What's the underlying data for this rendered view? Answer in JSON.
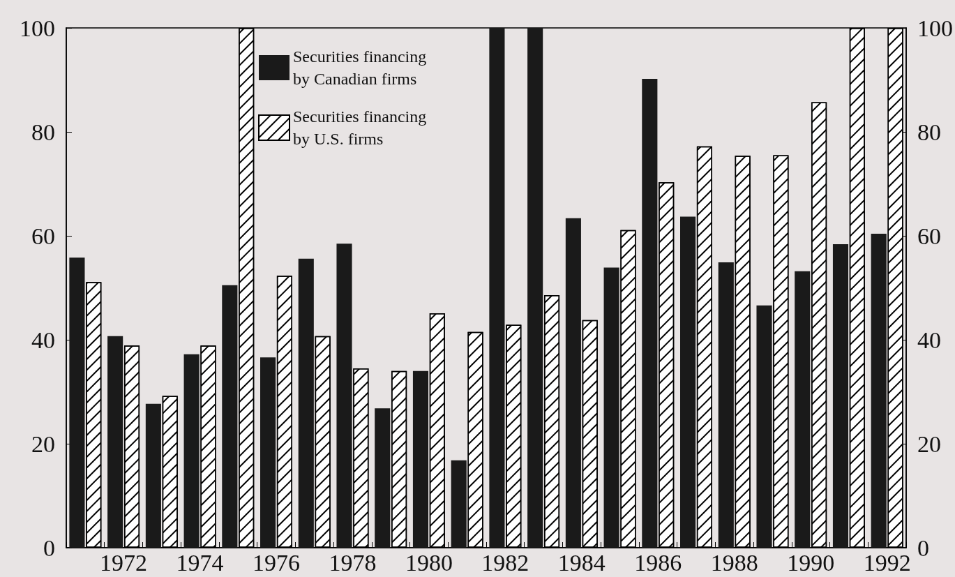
{
  "chart_data": {
    "type": "bar",
    "categories": [
      null,
      "1972",
      null,
      "1974",
      null,
      "1976",
      null,
      "1978",
      null,
      "1980",
      null,
      "1982",
      null,
      "1984",
      null,
      "1986",
      null,
      "1988",
      null,
      "1990",
      null,
      "1992"
    ],
    "series": [
      {
        "name": "Securities financing\nby Canadian firms",
        "color": "#1a1a1a",
        "values": [
          55.8,
          40.7,
          27.7,
          37.2,
          50.5,
          36.6,
          55.6,
          58.5,
          26.8,
          34,
          16.8,
          100,
          100,
          63.4,
          53.9,
          90.2,
          63.7,
          54.9,
          46.6,
          53.2,
          58.4,
          60.4
        ]
      },
      {
        "name": "Securities financing\nby U.S. firms",
        "color": "#ffffff",
        "values": [
          51.1,
          38.9,
          29.2,
          38.9,
          100,
          52.3,
          40.7,
          34.5,
          34,
          45.1,
          41.5,
          42.9,
          48.6,
          43.8,
          61.1,
          70.3,
          77.2,
          75.4,
          75.5,
          85.7,
          100,
          100
        ]
      }
    ],
    "ylim": [
      0,
      100
    ],
    "yticks": [
      0,
      20,
      40,
      60,
      80,
      100
    ],
    "y2lim": [
      0,
      100
    ],
    "y2ticks": [
      0,
      20,
      40,
      60,
      80,
      100
    ],
    "grid": false,
    "legend": "top left"
  }
}
